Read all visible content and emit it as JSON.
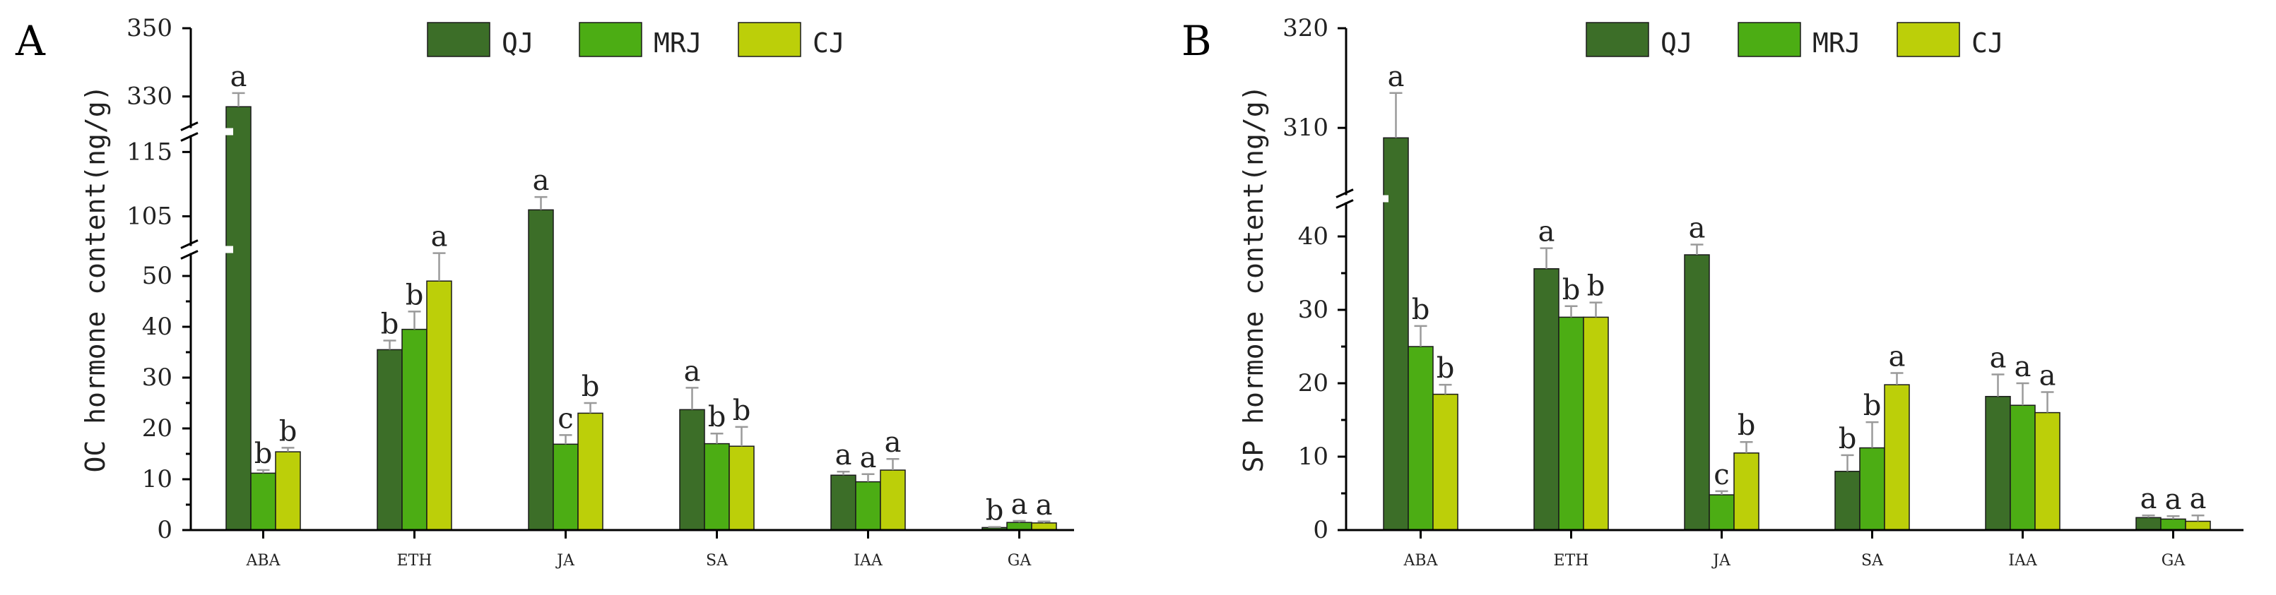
{
  "chart_data": [
    {
      "type": "bar",
      "panel_label": "A",
      "ylabel": "OC hormone content(ng/g)",
      "xlabel": "",
      "categories": [
        "ABA",
        "ETH",
        "JA",
        "SA",
        "IAA",
        "GA"
      ],
      "series": [
        {
          "name": "QJ",
          "color": "#3c6e28",
          "values": [
            327,
            35.5,
            106,
            23.7,
            10.8,
            0.5
          ],
          "errors": [
            4,
            1.8,
            2,
            4.3,
            0.7,
            0.1
          ],
          "letters": [
            "a",
            "b",
            "a",
            "a",
            "a",
            "b"
          ]
        },
        {
          "name": "MRJ",
          "color": "#4cad14",
          "values": [
            11.2,
            39.5,
            16.9,
            17,
            9.5,
            1.5
          ],
          "errors": [
            0.6,
            3.5,
            1.8,
            2,
            1.5,
            0.3
          ],
          "letters": [
            "b",
            "b",
            "c",
            "b",
            "a",
            "a"
          ]
        },
        {
          "name": "CJ",
          "color": "#bccf09",
          "values": [
            15.4,
            49,
            23,
            16.5,
            11.8,
            1.4
          ],
          "errors": [
            0.8,
            5.5,
            2,
            3.8,
            2.2,
            0.3
          ],
          "letters": [
            "b",
            "a",
            "b",
            "b",
            "a",
            "a"
          ]
        }
      ],
      "axis_segments": [
        {
          "range": [
            0,
            55
          ],
          "ticks": [
            0,
            10,
            20,
            30,
            40,
            50
          ]
        },
        {
          "range": [
            100,
            118
          ],
          "ticks": [
            105,
            115
          ]
        },
        {
          "range": [
            320,
            350
          ],
          "ticks": [
            330,
            350
          ]
        }
      ],
      "ylim": [
        0,
        350
      ]
    },
    {
      "type": "bar",
      "panel_label": "B",
      "ylabel": "SP hormone content(ng/g)",
      "xlabel": "",
      "categories": [
        "ABA",
        "ETH",
        "JA",
        "SA",
        "IAA",
        "GA"
      ],
      "series": [
        {
          "name": "QJ",
          "color": "#3c6e28",
          "values": [
            309,
            35.6,
            37.5,
            8,
            18.2,
            1.7
          ],
          "errors": [
            4.5,
            2.8,
            1.4,
            2.2,
            3,
            0.3
          ],
          "letters": [
            "a",
            "a",
            "a",
            "b",
            "a",
            "a"
          ]
        },
        {
          "name": "MRJ",
          "color": "#4cad14",
          "values": [
            25,
            29,
            4.8,
            11.2,
            17,
            1.5
          ],
          "errors": [
            2.8,
            1.5,
            0.5,
            3.5,
            3,
            0.4
          ],
          "letters": [
            "b",
            "b",
            "c",
            "b",
            "a",
            "a"
          ]
        },
        {
          "name": "CJ",
          "color": "#bccf09",
          "values": [
            18.5,
            29,
            10.5,
            19.8,
            16,
            1.2
          ],
          "errors": [
            1.3,
            2,
            1.5,
            1.6,
            2.8,
            0.8
          ],
          "letters": [
            "b",
            "b",
            "b",
            "a",
            "a",
            "a"
          ]
        }
      ],
      "axis_segments": [
        {
          "range": [
            0,
            45
          ],
          "ticks": [
            0,
            10,
            20,
            30,
            40
          ]
        },
        {
          "range": [
            303,
            320
          ],
          "ticks": [
            310,
            320
          ]
        }
      ],
      "ylim": [
        0,
        320
      ]
    }
  ]
}
